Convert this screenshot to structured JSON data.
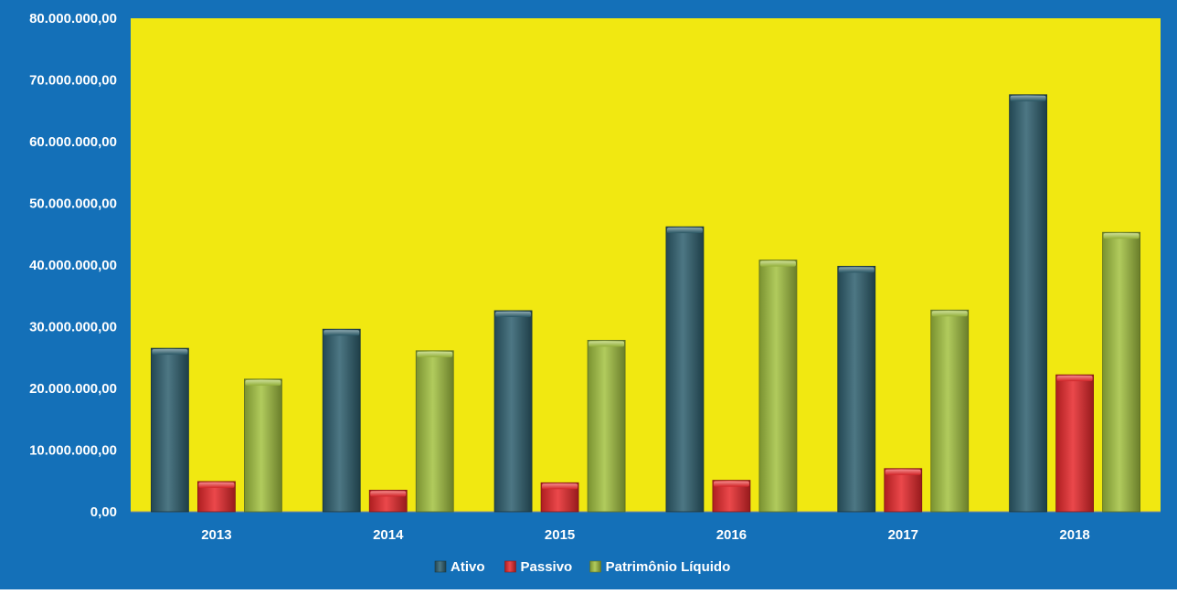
{
  "chart_data": {
    "type": "bar",
    "title": "",
    "xlabel": "",
    "ylabel": "",
    "categories": [
      "2013",
      "2014",
      "2015",
      "2016",
      "2017",
      "2018"
    ],
    "series": [
      {
        "name": "Ativo",
        "color": "#2E5F6E",
        "values": [
          26500000,
          29600000,
          32600000,
          46200000,
          39800000,
          67600000
        ]
      },
      {
        "name": "Passivo",
        "color": "#E8282B",
        "values": [
          4900000,
          3500000,
          4700000,
          5100000,
          7000000,
          22200000
        ]
      },
      {
        "name": "Patrimônio Líquido",
        "color": "#A3C240",
        "values": [
          21500000,
          26100000,
          27800000,
          40800000,
          32700000,
          45300000
        ]
      }
    ],
    "ylim": [
      0,
      80000000
    ],
    "y_ticks": [
      {
        "value": 0,
        "label": "0,00"
      },
      {
        "value": 10000000,
        "label": "10.000.000,00"
      },
      {
        "value": 20000000,
        "label": "20.000.000,00"
      },
      {
        "value": 30000000,
        "label": "30.000.000,00"
      },
      {
        "value": 40000000,
        "label": "40.000.000,00"
      },
      {
        "value": 50000000,
        "label": "50.000.000,00"
      },
      {
        "value": 60000000,
        "label": "60.000.000,00"
      },
      {
        "value": 70000000,
        "label": "70.000.000,00"
      },
      {
        "value": 80000000,
        "label": "80.000.000,00"
      }
    ],
    "grid": false,
    "legend_position": "bottom",
    "colors": {
      "background": "#1470B8",
      "plot_area": "#F1E811"
    }
  }
}
